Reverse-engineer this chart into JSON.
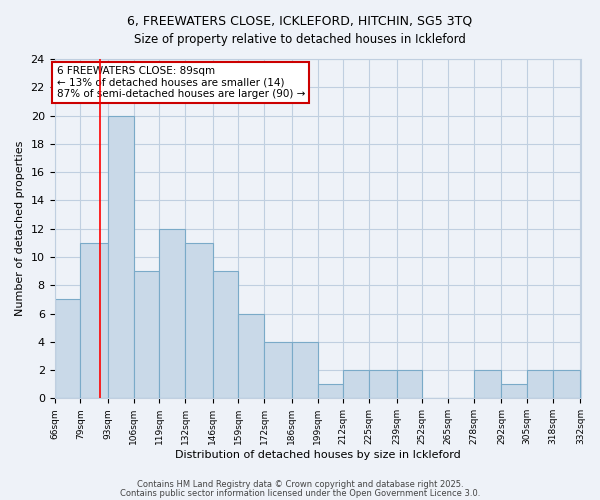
{
  "title1": "6, FREEWATERS CLOSE, ICKLEFORD, HITCHIN, SG5 3TQ",
  "title2": "Size of property relative to detached houses in Ickleford",
  "xlabel": "Distribution of detached houses by size in Ickleford",
  "ylabel": "Number of detached properties",
  "bin_labels": [
    "66sqm",
    "79sqm",
    "93sqm",
    "106sqm",
    "119sqm",
    "132sqm",
    "146sqm",
    "159sqm",
    "172sqm",
    "186sqm",
    "199sqm",
    "212sqm",
    "225sqm",
    "239sqm",
    "252sqm",
    "265sqm",
    "278sqm",
    "292sqm",
    "305sqm",
    "318sqm",
    "332sqm"
  ],
  "bin_edges": [
    66,
    79,
    93,
    106,
    119,
    132,
    146,
    159,
    172,
    186,
    199,
    212,
    225,
    239,
    252,
    265,
    278,
    292,
    305,
    318,
    332
  ],
  "bar_heights": [
    7,
    11,
    20,
    9,
    12,
    11,
    9,
    6,
    4,
    4,
    1,
    2,
    2,
    2,
    0,
    0,
    2,
    1,
    2,
    2
  ],
  "bar_color": "#c9d9e8",
  "bar_edge_color": "#7aaac8",
  "grid_color": "#c0cfe0",
  "bg_color": "#eef2f8",
  "red_line_x": 89,
  "annotation_text": "6 FREEWATERS CLOSE: 89sqm\n← 13% of detached houses are smaller (14)\n87% of semi-detached houses are larger (90) →",
  "annotation_box_color": "#ffffff",
  "annotation_border_color": "#cc0000",
  "footer_line1": "Contains HM Land Registry data © Crown copyright and database right 2025.",
  "footer_line2": "Contains public sector information licensed under the Open Government Licence 3.0.",
  "ylim": [
    0,
    24
  ],
  "yticks": [
    0,
    2,
    4,
    6,
    8,
    10,
    12,
    14,
    16,
    18,
    20,
    22,
    24
  ]
}
